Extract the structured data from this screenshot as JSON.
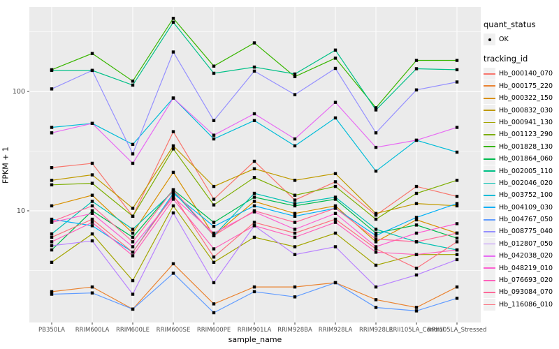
{
  "figure": {
    "background": "#FFFFFF",
    "panel_background": "#EBEBEB",
    "grid_color": "#FFFFFF",
    "axis_text_color": "#4D4D4D",
    "tick_color": "#333333",
    "point_color": "#000000"
  },
  "axes": {
    "x_title": "sample_name",
    "y_title": "FPKM + 1",
    "y_tick_labels": [
      "100",
      "10"
    ]
  },
  "legend": {
    "quant_status": {
      "title": "quant_status",
      "items": [
        {
          "label": "OK",
          "marker": "black-point"
        }
      ]
    },
    "tracking_id": {
      "title": "tracking_id"
    }
  },
  "chart_data": {
    "type": "line",
    "xlabel": "sample_name",
    "ylabel": "FPKM + 1",
    "y_scale": "log10",
    "y_major_ticks": [
      100,
      10
    ],
    "y_minor_gridlines": [
      316,
      31.6,
      3.16
    ],
    "ylim": [
      1.13,
      510
    ],
    "grid": true,
    "legend_position": "right",
    "marker": "black-square",
    "categories": [
      "PB350LA",
      "RRIM600LA",
      "RRIM600LE",
      "RRIM600SE",
      "RRIM600PE",
      "RRIM901LA",
      "RRIM928BA",
      "RRIM928LA",
      "RRIM928LE",
      "RRII105LA_Control",
      "RRII105LA_Stressed"
    ],
    "series": [
      {
        "name": "Hb_000140_070",
        "color": "#F8766D",
        "values": [
          23,
          25,
          9,
          46,
          12.5,
          26,
          12.3,
          17.5,
          9.2,
          16,
          13.2
        ]
      },
      {
        "name": "Hb_000175_220",
        "color": "#EA8331",
        "values": [
          2.1,
          2.3,
          1.5,
          3.6,
          1.66,
          2.3,
          2.3,
          2.5,
          1.8,
          1.55,
          2.3
        ]
      },
      {
        "name": "Hb_000322_150",
        "color": "#D89000",
        "values": [
          11,
          13.5,
          6.5,
          21,
          6.2,
          12,
          9.5,
          11,
          5.5,
          8.4,
          6.5
        ]
      },
      {
        "name": "Hb_000832_030",
        "color": "#C09B00",
        "values": [
          18,
          20,
          10.5,
          35,
          16,
          22.5,
          18,
          20.5,
          9.5,
          11.5,
          11
        ]
      },
      {
        "name": "Hb_000941_130",
        "color": "#A3A500",
        "values": [
          3.7,
          6.4,
          2.6,
          11,
          3.7,
          6,
          5,
          6.5,
          3.5,
          4.3,
          4.3
        ]
      },
      {
        "name": "Hb_001123_290",
        "color": "#7CAE00",
        "values": [
          16.5,
          17,
          9,
          33,
          11.2,
          19,
          13.5,
          16,
          8.5,
          14,
          18
        ]
      },
      {
        "name": "Hb_001828_130",
        "color": "#39B600",
        "values": [
          152,
          208,
          122,
          410,
          163,
          255,
          133,
          190,
          73,
          182,
          182
        ]
      },
      {
        "name": "Hb_001864_060",
        "color": "#00BB4E",
        "values": [
          4.7,
          10,
          6,
          15,
          8,
          13,
          11,
          12.5,
          6.5,
          7.6,
          5.9
        ]
      },
      {
        "name": "Hb_002005_110",
        "color": "#00C087",
        "values": [
          150,
          150,
          113,
          380,
          142,
          160,
          140,
          222,
          70,
          155,
          152
        ]
      },
      {
        "name": "Hb_002046_020",
        "color": "#00C0B2",
        "values": [
          6.4,
          12,
          7,
          14.5,
          6.2,
          14,
          11.5,
          13,
          7,
          5.5,
          4.7
        ]
      },
      {
        "name": "Hb_003752_100",
        "color": "#00BCD8",
        "values": [
          50,
          54,
          36,
          88,
          40,
          57,
          35,
          60,
          21.5,
          39,
          31
        ]
      },
      {
        "name": "Hb_004109_030",
        "color": "#00B0F6",
        "values": [
          8.5,
          7.5,
          4.5,
          14,
          7.4,
          11,
          9,
          10.5,
          6.2,
          8.8,
          11.5
        ]
      },
      {
        "name": "Hb_004767_050",
        "color": "#619CFF",
        "values": [
          2.0,
          2.05,
          1.5,
          3.0,
          1.4,
          2.1,
          1.9,
          2.5,
          1.55,
          1.45,
          1.85
        ]
      },
      {
        "name": "Hb_008775_040",
        "color": "#9590FF",
        "values": [
          105,
          150,
          30,
          214,
          57,
          148,
          94,
          156,
          45,
          103,
          120
        ]
      },
      {
        "name": "Hb_012807_050",
        "color": "#B983FF",
        "values": [
          5.1,
          5.6,
          2.0,
          9.6,
          2.5,
          7.5,
          4.3,
          5.0,
          2.3,
          2.9,
          3.9
        ]
      },
      {
        "name": "Hb_042038_020",
        "color": "#E76BF3",
        "values": [
          45,
          54,
          25,
          88,
          43,
          65,
          40,
          81,
          34,
          39,
          50
        ]
      },
      {
        "name": "Hb_048219_010",
        "color": "#FD61D1",
        "values": [
          8,
          9.5,
          5,
          13,
          6.5,
          9.8,
          7,
          9.5,
          5,
          6.5,
          7.8
        ]
      },
      {
        "name": "Hb_076693_020",
        "color": "#FF62BC",
        "values": [
          5.5,
          8,
          4.2,
          12.5,
          4.8,
          7.5,
          6,
          8,
          4.5,
          4.3,
          4.7
        ]
      },
      {
        "name": "Hb_093084_070",
        "color": "#FF6A9A",
        "values": [
          8.1,
          11,
          5.5,
          15,
          6.2,
          10,
          8,
          10.5,
          5.8,
          5.5,
          6.5
        ]
      },
      {
        "name": "Hb_116086_010",
        "color": "#FC717F",
        "values": [
          6,
          8.5,
          4.5,
          13.5,
          4.1,
          8,
          6.5,
          8.5,
          4.8,
          3.3,
          5.5
        ]
      }
    ]
  }
}
